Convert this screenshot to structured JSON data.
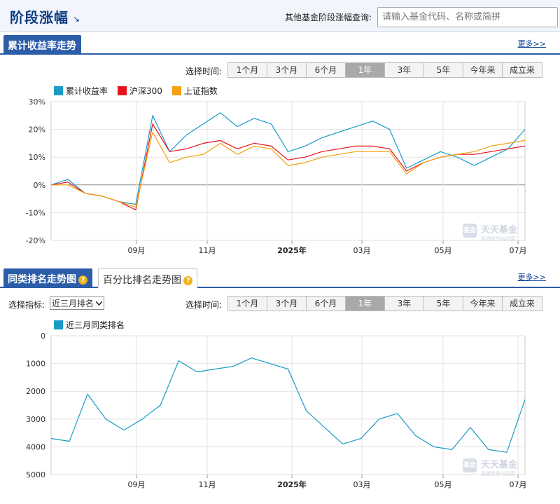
{
  "header": {
    "title": "阶段涨幅",
    "arrow": "↘",
    "query_label": "其他基金阶段涨幅查询:",
    "query_placeholder": "请输入基金代码、名称或简拼"
  },
  "section1": {
    "tab_label": "累计收益率走势",
    "more_label": "更多>>",
    "time_label": "选择时间:",
    "time_buttons": [
      "1个月",
      "3个月",
      "6个月",
      "1年",
      "3年",
      "5年",
      "今年来",
      "成立来"
    ],
    "active_time": "1年",
    "legend": [
      {
        "name": "累计收益率",
        "color": "#1a9bc6"
      },
      {
        "name": "沪深300",
        "color": "#e8121b"
      },
      {
        "name": "上证指数",
        "color": "#f5a20c"
      }
    ]
  },
  "section2": {
    "tab_label": "同类排名走势图",
    "tab2_label": "百分比排名走势图",
    "more_label": "更多>>",
    "indicator_label": "选择指标:",
    "indicator_value": "近三月排名",
    "time_label": "选择时间:",
    "time_buttons": [
      "1个月",
      "3个月",
      "6个月",
      "1年",
      "3年",
      "5年",
      "今年来",
      "成立来"
    ],
    "active_time": "1年",
    "legend": [
      {
        "name": "近三月同类排名",
        "color": "#1a9bc6"
      }
    ]
  },
  "watermark": {
    "brand": "天天基金",
    "logo": "基金",
    "slogan": "稳健投资与财富"
  },
  "chart_data": [
    {
      "type": "line",
      "title": "",
      "x_ticks": [
        "09月",
        "11月",
        "2025年",
        "03月",
        "05月",
        "07月"
      ],
      "y_ticks": [
        "30%",
        "20%",
        "10%",
        "0%",
        "-10%",
        "-20%"
      ],
      "ylim": [
        -20,
        30
      ],
      "grid": true,
      "legend_position": "top-left",
      "x": [
        "2024-07",
        "2024-08",
        "2024-08",
        "2024-09",
        "2024-09",
        "2024-10",
        "2024-10",
        "2024-10",
        "2024-10",
        "2024-11",
        "2024-11",
        "2024-11",
        "2024-12",
        "2024-12",
        "2025-01",
        "2025-01",
        "2025-02",
        "2025-02",
        "2025-03",
        "2025-03",
        "2025-04",
        "2025-04",
        "2025-04",
        "2025-05",
        "2025-05",
        "2025-06",
        "2025-06",
        "2025-07",
        "2025-07"
      ],
      "series": [
        {
          "name": "累计收益率",
          "color": "#1a9bc6",
          "values": [
            0,
            2,
            -3,
            -4,
            -6,
            -7,
            25,
            12,
            18,
            22,
            26,
            21,
            24,
            22,
            12,
            14,
            17,
            19,
            21,
            23,
            20,
            6,
            9,
            12,
            10,
            7,
            10,
            13,
            20
          ]
        },
        {
          "name": "沪深300",
          "color": "#e8121b",
          "values": [
            0,
            1,
            -3,
            -4,
            -6,
            -9,
            22,
            12,
            13,
            15,
            16,
            13,
            15,
            14,
            9,
            10,
            12,
            13,
            14,
            14,
            13,
            5,
            8,
            10,
            11,
            11,
            12,
            13,
            14
          ]
        },
        {
          "name": "上证指数",
          "color": "#f5a20c",
          "values": [
            0,
            0,
            -3,
            -4,
            -6,
            -8,
            19,
            8,
            10,
            11,
            15,
            11,
            14,
            13,
            7,
            8,
            10,
            11,
            12,
            12,
            12,
            4,
            8,
            10,
            11,
            12,
            14,
            15,
            16
          ]
        }
      ]
    },
    {
      "type": "line",
      "title": "",
      "x_ticks": [
        "09月",
        "11月",
        "2025年",
        "03月",
        "05月",
        "07月"
      ],
      "y_ticks": [
        "0",
        "1000",
        "2000",
        "3000",
        "4000",
        "5000"
      ],
      "ylim": [
        0,
        5000
      ],
      "y_inverted": true,
      "grid": true,
      "legend_position": "top-left",
      "x": [
        "2024-07",
        "2024-08",
        "2024-08",
        "2024-08",
        "2024-09",
        "2024-09",
        "2024-10",
        "2024-10",
        "2024-10",
        "2024-11",
        "2024-11",
        "2024-12",
        "2024-12",
        "2025-01",
        "2025-01",
        "2025-02",
        "2025-02",
        "2025-03",
        "2025-03",
        "2025-04",
        "2025-04",
        "2025-05",
        "2025-05",
        "2025-06",
        "2025-06",
        "2025-07",
        "2025-07"
      ],
      "series": [
        {
          "name": "近三月同类排名",
          "color": "#1a9bc6",
          "values": [
            3700,
            3800,
            2100,
            3000,
            3400,
            3000,
            2500,
            900,
            1300,
            1200,
            1100,
            800,
            1000,
            1200,
            2700,
            3300,
            3900,
            3700,
            3000,
            2800,
            3600,
            4000,
            4100,
            3300,
            4100,
            4200,
            2300
          ]
        }
      ]
    }
  ]
}
